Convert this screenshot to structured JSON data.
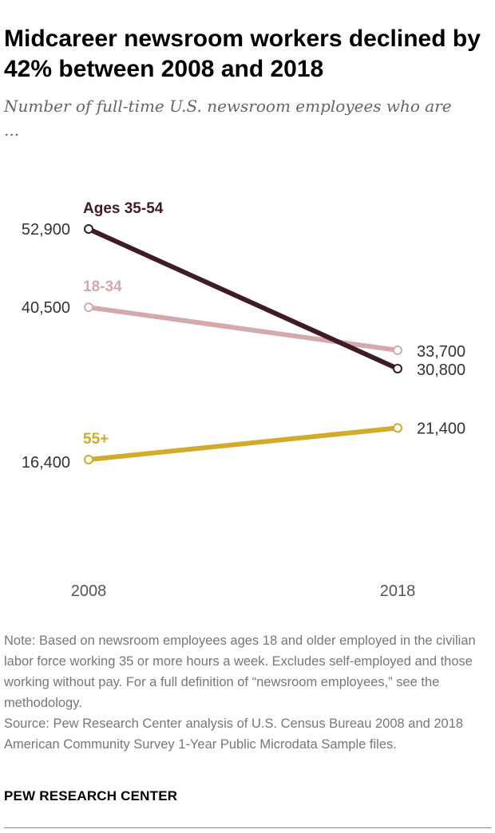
{
  "title": "Midcareer newsroom workers declined by 42% between 2008 and 2018",
  "subtitle": "Number of full-time U.S. newsroom employees who are ...",
  "note": "Note: Based on newsroom employees ages 18 and older employed in the civilian labor force working 35 or more hours a week. Excludes self-employed and those working without pay. For a full definition of “newsroom employees,” see the methodology.",
  "source": "Source: Pew Research Center analysis of U.S. Census Bureau 2008 and 2018 American Community Survey 1-Year Public Microdata Sample files.",
  "brand": "PEW RESEARCH CENTER",
  "chart_data": {
    "type": "line",
    "x": [
      "2008",
      "2018"
    ],
    "series": [
      {
        "name": "Ages 35-54",
        "values": [
          52900,
          30800
        ],
        "labels": [
          "52,900",
          "30,800"
        ],
        "color": "#3f1c24"
      },
      {
        "name": "18-34",
        "values": [
          40500,
          33700
        ],
        "labels": [
          "40,500",
          "33,700"
        ],
        "color": "#d3a9ae"
      },
      {
        "name": "55+",
        "values": [
          16400,
          21400
        ],
        "labels": [
          "16,400",
          "21,400"
        ],
        "color": "#d2ab2a"
      }
    ],
    "grid": false,
    "legend": "direct labels"
  }
}
